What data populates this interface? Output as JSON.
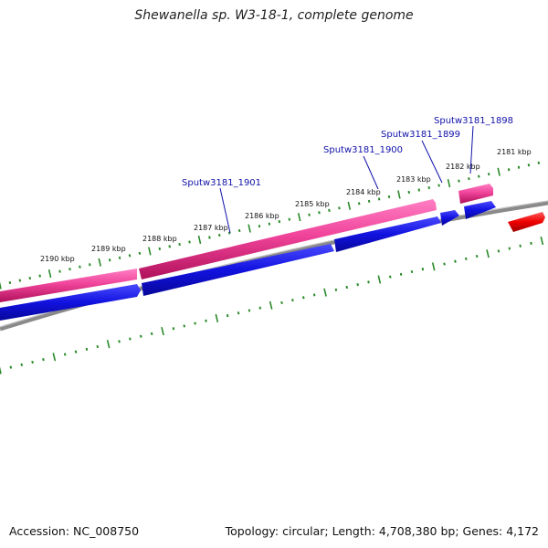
{
  "title": "Shewanella sp. W3-18-1, complete genome",
  "footer": {
    "accession": "Accession: NC_008750",
    "topology": "Topology: circular; Length: 4,708,380 bp; Genes: 4,172"
  },
  "ticks": [
    {
      "kb": "2181 kbp"
    },
    {
      "kb": "2182 kbp"
    },
    {
      "kb": "2183 kbp"
    },
    {
      "kb": "2184 kbp"
    },
    {
      "kb": "2185 kbp"
    },
    {
      "kb": "2186 kbp"
    },
    {
      "kb": "2187 kbp"
    },
    {
      "kb": "2188 kbp"
    },
    {
      "kb": "2189 kbp"
    },
    {
      "kb": "2190 kbp"
    }
  ],
  "gene_labels": [
    "Sputw3181_1898",
    "Sputw3181_1899",
    "Sputw3181_1900",
    "Sputw3181_1901"
  ],
  "colors": {
    "pink": "#e8207f",
    "blue": "#1010dd",
    "red": "#ee0000",
    "backbone": "#888888",
    "ticks": "#2a8a2a",
    "labels": "#1111aa"
  }
}
